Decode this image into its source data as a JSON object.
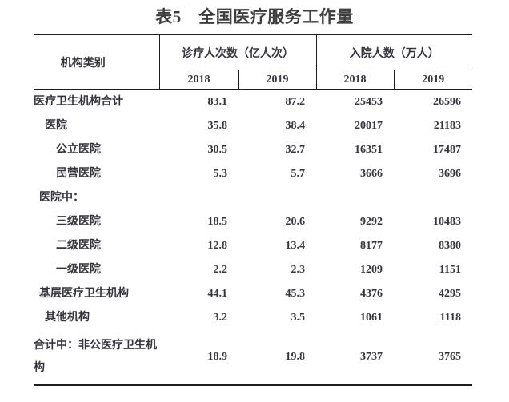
{
  "title": "表5　全国医疗服务工作量",
  "table": {
    "col_category": "机构类别",
    "groups": [
      {
        "label": "诊疗人次数（亿人次）",
        "years": [
          "2018",
          "2019"
        ]
      },
      {
        "label": "入院人数（万人）",
        "years": [
          "2018",
          "2019"
        ]
      }
    ],
    "rows": [
      {
        "label": "医疗卫生机构合计",
        "indent": 0,
        "values": [
          "83.1",
          "87.2",
          "25453",
          "26596"
        ]
      },
      {
        "label": "医院",
        "indent": 2,
        "values": [
          "35.8",
          "38.4",
          "20017",
          "21183"
        ]
      },
      {
        "label": "公立医院",
        "indent": 3,
        "values": [
          "30.5",
          "32.7",
          "16351",
          "17487"
        ]
      },
      {
        "label": "民营医院",
        "indent": 3,
        "values": [
          "5.3",
          "5.7",
          "3666",
          "3696"
        ]
      },
      {
        "label": "医院中：",
        "indent": 1,
        "values": [
          "",
          "",
          "",
          ""
        ]
      },
      {
        "label": "三级医院",
        "indent": 3,
        "values": [
          "18.5",
          "20.6",
          "9292",
          "10483"
        ]
      },
      {
        "label": "二级医院",
        "indent": 3,
        "values": [
          "12.8",
          "13.4",
          "8177",
          "8380"
        ]
      },
      {
        "label": "一级医院",
        "indent": 3,
        "values": [
          "2.2",
          "2.3",
          "1209",
          "1151"
        ]
      },
      {
        "label": "基层医疗卫生机构",
        "indent": 1,
        "values": [
          "44.1",
          "45.3",
          "4376",
          "4295"
        ]
      },
      {
        "label": "其他机构",
        "indent": 2,
        "values": [
          "3.2",
          "3.5",
          "1061",
          "1118"
        ]
      },
      {
        "label": "合计中：非公医疗卫生机构",
        "indent": 0,
        "values": [
          "18.9",
          "19.8",
          "3737",
          "3765"
        ]
      }
    ],
    "text_color": "#35353e",
    "border_color": "#1c1c1c"
  }
}
